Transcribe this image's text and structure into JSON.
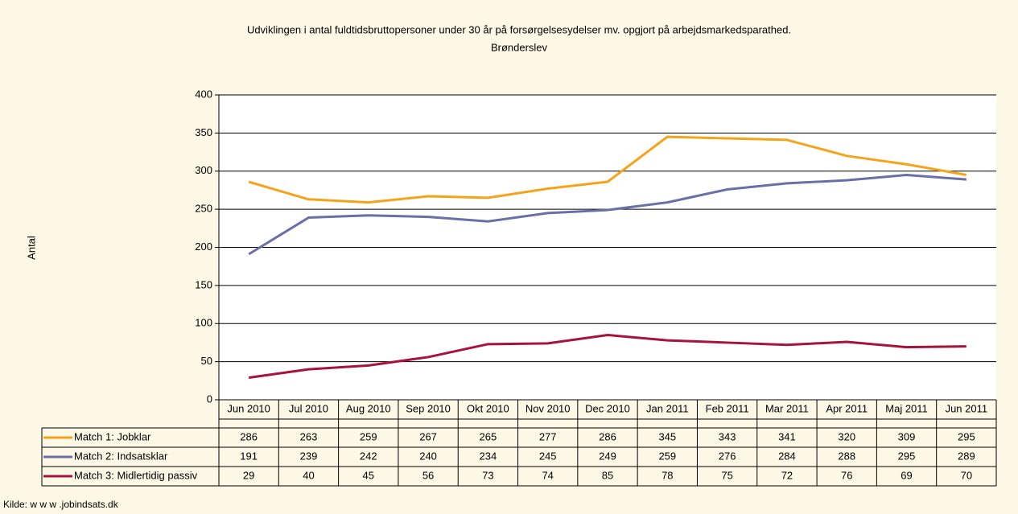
{
  "chart_data": {
    "type": "line",
    "title": "Udviklingen i antal fuldtidsbruttopersoner under 30 år på forsørgelsesydelser mv. opgjort på arbejdsmarkedsparathed.",
    "subtitle": "Brønderslev",
    "y_label": "Antal",
    "source": "Kilde: w w w .jobindsats.dk",
    "categories": [
      "Jun 2010",
      "Jul 2010",
      "Aug 2010",
      "Sep 2010",
      "Okt 2010",
      "Nov 2010",
      "Dec 2010",
      "Jan 2011",
      "Feb 2011",
      "Mar 2011",
      "Apr 2011",
      "Maj 2011",
      "Jun 2011"
    ],
    "series": [
      {
        "name": "Match 1: Jobklar",
        "color": "#f5a31a",
        "values": [
          286,
          263,
          259,
          267,
          265,
          277,
          286,
          345,
          343,
          341,
          320,
          309,
          295
        ]
      },
      {
        "name": "Match 2: Indsatsklar",
        "color": "#6b6fa8",
        "values": [
          191,
          239,
          242,
          240,
          234,
          245,
          249,
          259,
          276,
          284,
          288,
          295,
          289
        ]
      },
      {
        "name": "Match 3: Midlertidig passiv",
        "color": "#a8123e",
        "values": [
          29,
          40,
          45,
          56,
          73,
          74,
          85,
          78,
          75,
          72,
          76,
          69,
          70
        ]
      }
    ],
    "ylim": [
      0,
      400
    ],
    "yticks": [
      0,
      50,
      100,
      150,
      200,
      250,
      300,
      350,
      400
    ],
    "grid": true
  }
}
